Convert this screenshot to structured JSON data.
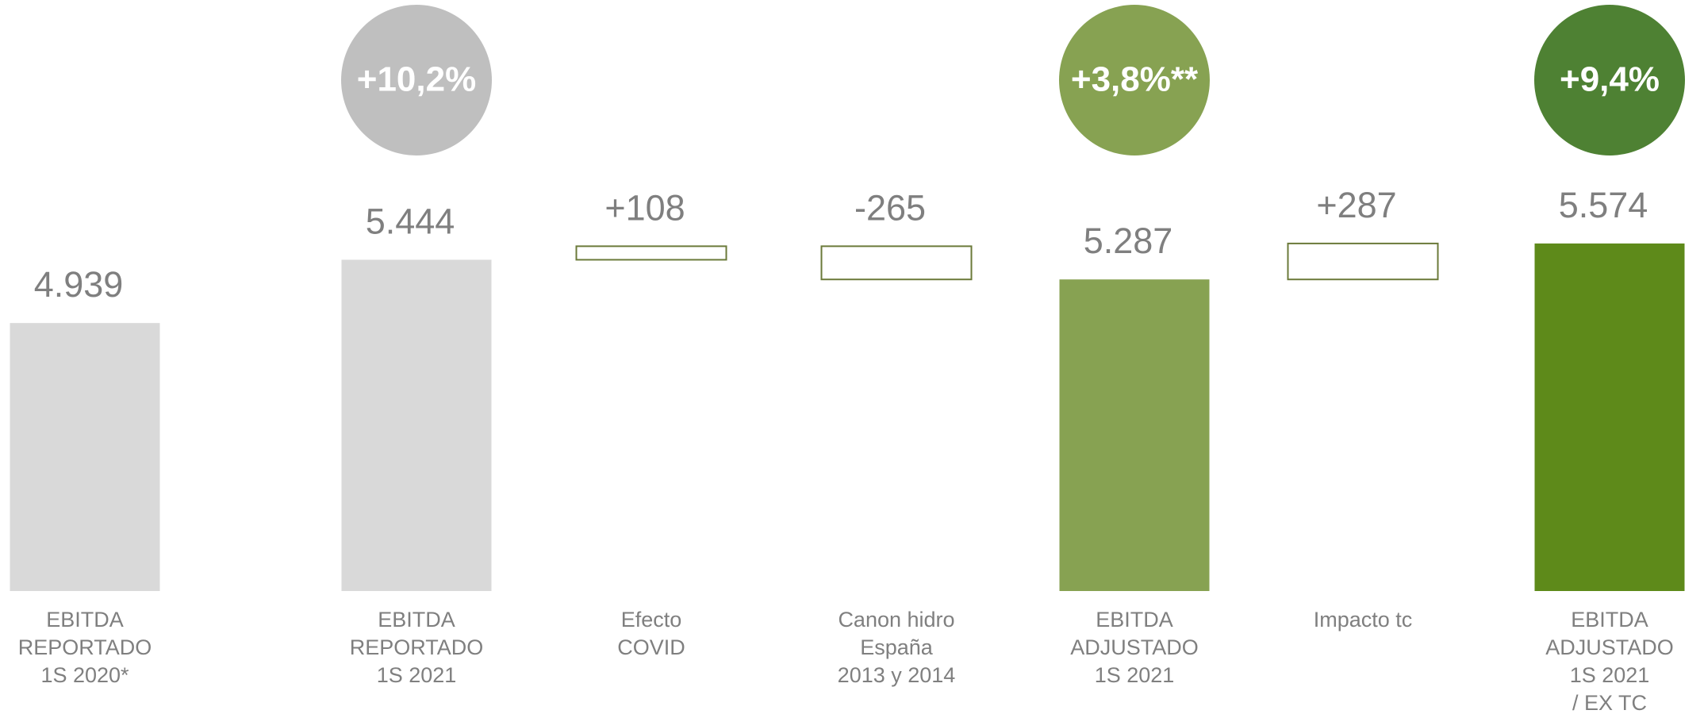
{
  "chart_data": {
    "type": "waterfall",
    "categories": [
      [
        "EBITDA",
        "REPORTADO",
        "1S 2020*"
      ],
      [
        "EBITDA",
        "REPORTADO",
        "1S 2021"
      ],
      [
        "Efecto",
        "COVID"
      ],
      [
        "Canon hidro",
        "España",
        "2013 y 2014"
      ],
      [
        "EBITDA",
        "ADJUSTADO",
        "1S 2021"
      ],
      [
        "Impacto tc"
      ],
      [
        "EBITDA",
        "ADJUSTADO",
        "1S 2021",
        "/ EX TC"
      ]
    ],
    "measure": [
      "absolute",
      "absolute",
      "relative",
      "relative",
      "absolute",
      "relative",
      "absolute"
    ],
    "values": [
      4939,
      5444,
      108,
      -265,
      5287,
      287,
      5574
    ],
    "value_labels": [
      "4.939",
      "5.444",
      "+108",
      "-265",
      "5.287",
      "+287",
      "5.574"
    ],
    "colors": [
      "#d9d9d9",
      "#d9d9d9",
      "#ffffff",
      "#ffffff",
      "#87a252",
      "#ffffff",
      "#5e8a1a"
    ],
    "delta_stroke": "#6b7a3a",
    "badges": [
      null,
      "+10,2%",
      null,
      null,
      "+3,8%**",
      null,
      "+9,4%"
    ],
    "badge_colors": [
      null,
      "#bfbfbf",
      null,
      null,
      "#87a252",
      null,
      "#4e8133"
    ],
    "ylim": [
      2800,
      5700
    ]
  }
}
